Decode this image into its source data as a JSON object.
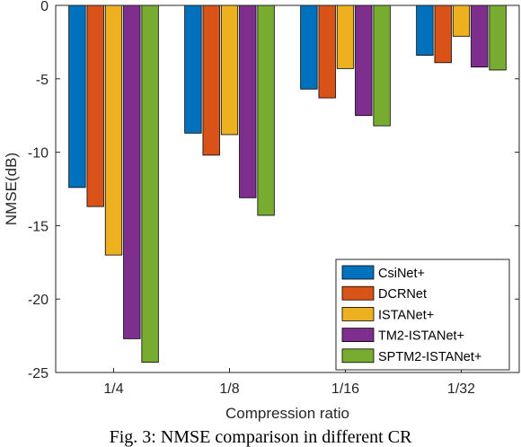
{
  "caption": "Fig. 3: NMSE comparison in different CR",
  "chart_data": {
    "type": "bar",
    "categories": [
      "1/4",
      "1/8",
      "1/16",
      "1/32"
    ],
    "xlabel": "Compression ratio",
    "ylabel": "NMSE(dB)",
    "ylim": [
      -25,
      0
    ],
    "yticks": [
      0,
      -5,
      -10,
      -15,
      -20,
      -25
    ],
    "legend_position": "bottom-right",
    "grid": false,
    "series": [
      {
        "name": "CsiNet+",
        "color": "#0072BD",
        "values": [
          -12.4,
          -8.7,
          -5.7,
          -3.4
        ]
      },
      {
        "name": "DCRNet",
        "color": "#D95319",
        "values": [
          -13.7,
          -10.2,
          -6.3,
          -3.9
        ]
      },
      {
        "name": "ISTANet+",
        "color": "#EDB120",
        "values": [
          -17.0,
          -8.8,
          -4.3,
          -2.1
        ]
      },
      {
        "name": "TM2-ISTANet+",
        "color": "#7E2F8E",
        "values": [
          -22.7,
          -13.1,
          -7.5,
          -4.2
        ]
      },
      {
        "name": "SPTM2-ISTANet+",
        "color": "#77AC30",
        "values": [
          -24.3,
          -14.3,
          -8.2,
          -4.4
        ]
      }
    ]
  }
}
